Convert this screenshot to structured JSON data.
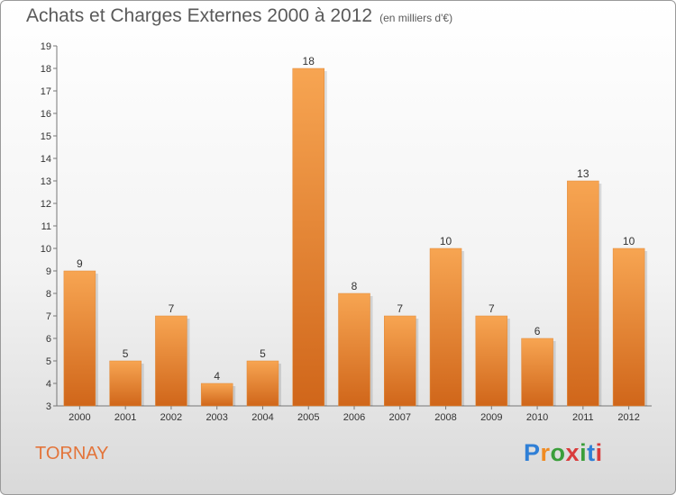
{
  "title": "Achats et Charges Externes 2000 à 2012",
  "subtitle": "(en milliers d'€)",
  "commune": "TORNAY",
  "logo": {
    "letters": [
      "P",
      "r",
      "o",
      "x",
      "i",
      "t",
      "i"
    ],
    "colors": [
      "#2f7fd6",
      "#f08b22",
      "#3a9e3a",
      "#d93b3b",
      "#3a9e3a",
      "#2f7fd6",
      "#d93b3b"
    ]
  },
  "chart_data": {
    "type": "bar",
    "categories": [
      "2000",
      "2001",
      "2002",
      "2003",
      "2004",
      "2005",
      "2006",
      "2007",
      "2008",
      "2009",
      "2010",
      "2011",
      "2012"
    ],
    "values": [
      9,
      5,
      7,
      4,
      5,
      18,
      8,
      7,
      10,
      7,
      6,
      13,
      10
    ],
    "data_labels": [
      "9",
      "5",
      "7",
      "4",
      "5",
      "18",
      "8",
      "7",
      "10",
      "7",
      "6",
      "13",
      "10"
    ],
    "yticks": [
      "3",
      "4",
      "5",
      "6",
      "7",
      "8",
      "9",
      "10",
      "11",
      "12",
      "13",
      "14",
      "15",
      "16",
      "17",
      "18",
      "19"
    ],
    "ylim": [
      3,
      19
    ],
    "grid": false,
    "bar_color": "#f0913c",
    "bar_color_dark": "#d0661a"
  }
}
